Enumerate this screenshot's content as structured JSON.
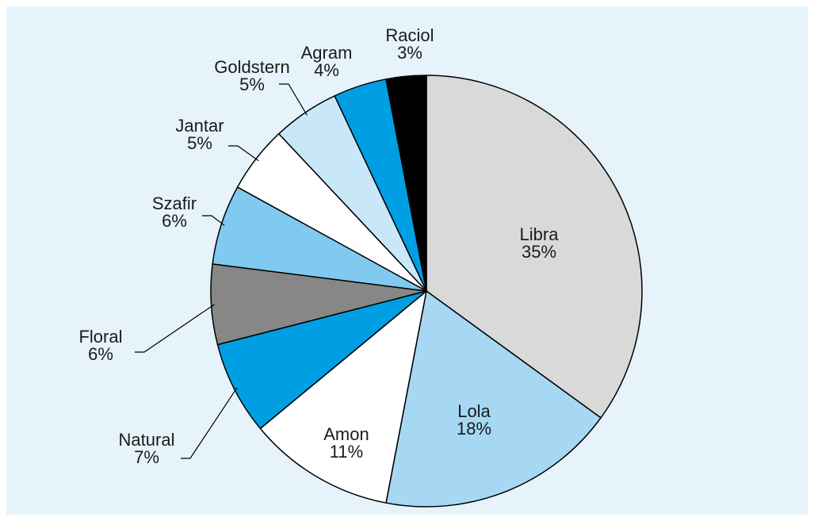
{
  "chart_data": {
    "type": "pie",
    "categories": [
      "Libra",
      "Lola",
      "Amon",
      "Natural",
      "Floral",
      "Szafir",
      "Jantar",
      "Goldstern",
      "Agram",
      "Raciol"
    ],
    "values": [
      35,
      18,
      11,
      7,
      6,
      6,
      5,
      5,
      4,
      3
    ],
    "value_labels": [
      "35%",
      "18%",
      "11%",
      "7%",
      "6%",
      "6%",
      "5%",
      "5%",
      "4%",
      "3%"
    ],
    "colors": [
      "#d9d9d9",
      "#a6d8f4",
      "#ffffff",
      "#009fe3",
      "#878787",
      "#80caf0",
      "#ffffff",
      "#c8e8f9",
      "#009fe3",
      "#000000"
    ]
  }
}
